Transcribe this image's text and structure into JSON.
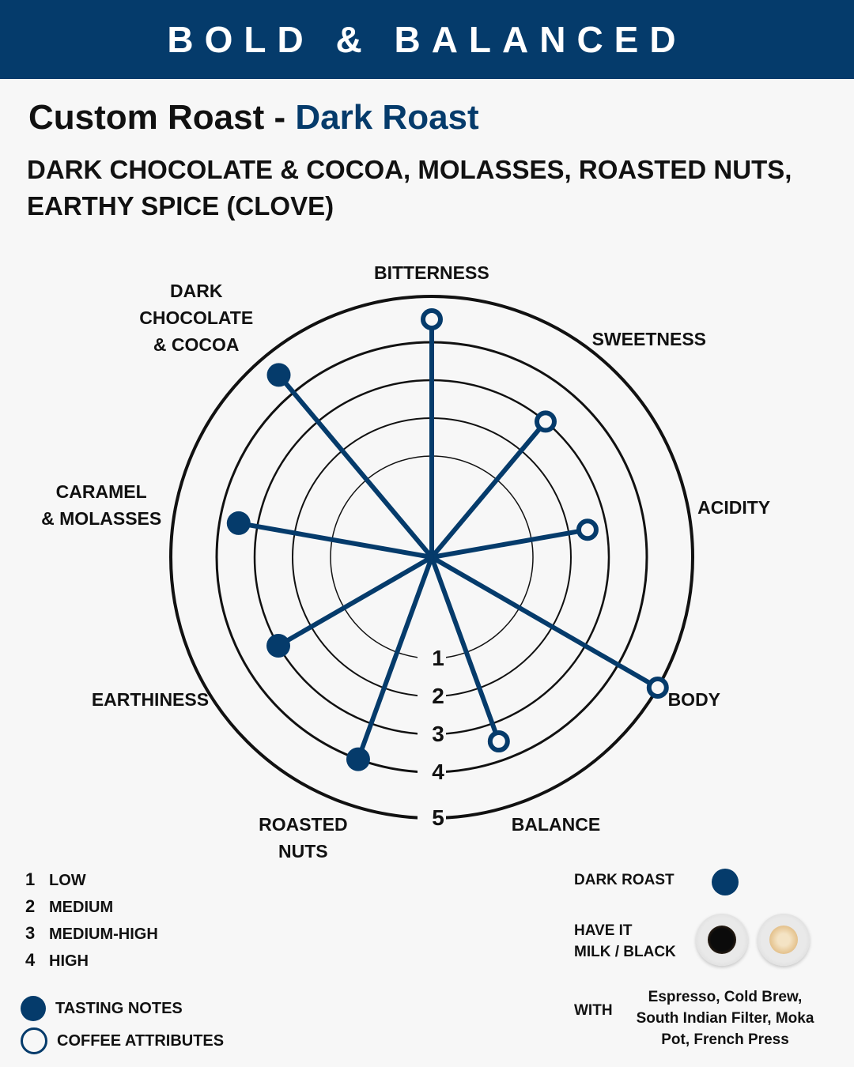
{
  "banner": {
    "title": "BOLD & BALANCED"
  },
  "heading": {
    "prefix": "Custom Roast - ",
    "roast": "Dark Roast"
  },
  "flavor_notes": "DARK CHOCOLATE & COCOA, MOLASSES, ROASTED NUTS, EARTHY SPICE (CLOVE)",
  "colors": {
    "brand": "#053b6b",
    "background": "#f7f7f7",
    "text": "#111111"
  },
  "chart_data": {
    "type": "radar",
    "scale_max": 5,
    "ring_labels": [
      "1",
      "2",
      "3",
      "4",
      "5"
    ],
    "axes": [
      {
        "label": "BITTERNESS",
        "value": 4.5,
        "kind": "attribute"
      },
      {
        "label": "SWEETNESS",
        "value": 3,
        "kind": "attribute"
      },
      {
        "label": "ACIDITY",
        "value": 2.5,
        "kind": "attribute"
      },
      {
        "label": "BODY",
        "value": 5,
        "kind": "attribute"
      },
      {
        "label": "BALANCE",
        "value": 3.5,
        "kind": "attribute"
      },
      {
        "label": "ROASTED\nNUTS",
        "value": 4,
        "kind": "tasting_note"
      },
      {
        "label": "EARTHINESS",
        "value": 3,
        "kind": "tasting_note"
      },
      {
        "label": "CARAMEL\n& MOLASSES",
        "value": 3.5,
        "kind": "tasting_note"
      },
      {
        "label": "DARK\nCHOCOLATE\n& COCOA",
        "value": 4.5,
        "kind": "tasting_note"
      }
    ]
  },
  "scale_legend": [
    {
      "num": "1",
      "label": "LOW"
    },
    {
      "num": "2",
      "label": "MEDIUM"
    },
    {
      "num": "3",
      "label": "MEDIUM-HIGH"
    },
    {
      "num": "4",
      "label": "HIGH"
    }
  ],
  "marker_legend": {
    "filled": "TASTING NOTES",
    "open": "COFFEE ATTRIBUTES"
  },
  "roast_legend": {
    "roast_label": "DARK  ROAST",
    "have_it_line1": "HAVE IT",
    "have_it_line2": "MILK / BLACK",
    "with_label": "WITH",
    "with_methods": "Espresso, Cold Brew, South Indian Filter, Moka Pot, French Press",
    "icons": [
      "black-coffee-cup-icon",
      "milk-coffee-cup-icon"
    ]
  }
}
